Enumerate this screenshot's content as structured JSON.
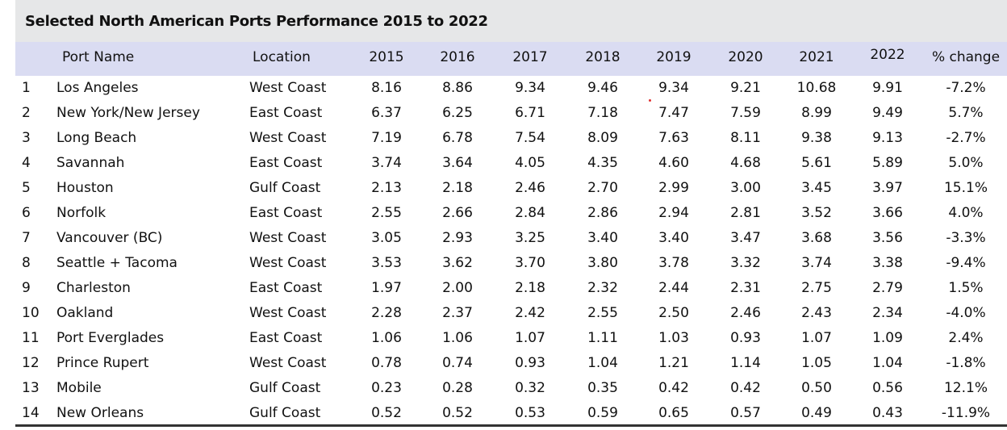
{
  "title": "Selected North American Ports Performance 2015 to 2022",
  "columns": [
    "Port Name",
    "Location",
    "2015",
    "2016",
    "2017",
    "2018",
    "2019",
    "2020",
    "2021",
    "2022",
    "% change"
  ],
  "chart_data": {
    "type": "table",
    "title": "Selected North American Ports Performance 2015 to 2022",
    "columns": [
      "",
      "Port Name",
      "Location",
      "2015",
      "2016",
      "2017",
      "2018",
      "2019",
      "2020",
      "2021",
      "2022",
      "% change"
    ],
    "rows": [
      [
        "1",
        "Los Angeles",
        "West Coast",
        "8.16",
        "8.86",
        "9.34",
        "9.46",
        "9.34",
        "9.21",
        "10.68",
        "9.91",
        "-7.2%"
      ],
      [
        "2",
        "New York/New Jersey",
        "East Coast",
        "6.37",
        "6.25",
        "6.71",
        "7.18",
        "7.47",
        "7.59",
        "8.99",
        "9.49",
        "5.7%"
      ],
      [
        "3",
        "Long Beach",
        "West Coast",
        "7.19",
        "6.78",
        "7.54",
        "8.09",
        "7.63",
        "8.11",
        "9.38",
        "9.13",
        "-2.7%"
      ],
      [
        "4",
        "Savannah",
        "East Coast",
        "3.74",
        "3.64",
        "4.05",
        "4.35",
        "4.60",
        "4.68",
        "5.61",
        "5.89",
        "5.0%"
      ],
      [
        "5",
        "Houston",
        "Gulf Coast",
        "2.13",
        "2.18",
        "2.46",
        "2.70",
        "2.99",
        "3.00",
        "3.45",
        "3.97",
        "15.1%"
      ],
      [
        "6",
        "Norfolk",
        "East Coast",
        "2.55",
        "2.66",
        "2.84",
        "2.86",
        "2.94",
        "2.81",
        "3.52",
        "3.66",
        "4.0%"
      ],
      [
        "7",
        "Vancouver (BC)",
        "West Coast",
        "3.05",
        "2.93",
        "3.25",
        "3.40",
        "3.40",
        "3.47",
        "3.68",
        "3.56",
        "-3.3%"
      ],
      [
        "8",
        "Seattle + Tacoma",
        "West Coast",
        "3.53",
        "3.62",
        "3.70",
        "3.80",
        "3.78",
        "3.32",
        "3.74",
        "3.38",
        "-9.4%"
      ],
      [
        "9",
        "Charleston",
        "East Coast",
        "1.97",
        "2.00",
        "2.18",
        "2.32",
        "2.44",
        "2.31",
        "2.75",
        "2.79",
        "1.5%"
      ],
      [
        "10",
        "Oakland",
        "West Coast",
        "2.28",
        "2.37",
        "2.42",
        "2.55",
        "2.50",
        "2.46",
        "2.43",
        "2.34",
        "-4.0%"
      ],
      [
        "11",
        "Port Everglades",
        "East Coast",
        "1.06",
        "1.06",
        "1.07",
        "1.11",
        "1.03",
        "0.93",
        "1.07",
        "1.09",
        "2.4%"
      ],
      [
        "12",
        "Prince Rupert",
        "West Coast",
        "0.78",
        "0.74",
        "0.93",
        "1.04",
        "1.21",
        "1.14",
        "1.05",
        "1.04",
        "-1.8%"
      ],
      [
        "13",
        "Mobile",
        "Gulf Coast",
        "0.23",
        "0.28",
        "0.32",
        "0.35",
        "0.42",
        "0.42",
        "0.50",
        "0.56",
        "12.1%"
      ],
      [
        "14",
        "New Orleans",
        "Gulf Coast",
        "0.52",
        "0.52",
        "0.53",
        "0.59",
        "0.65",
        "0.57",
        "0.49",
        "0.43",
        "-11.9%"
      ]
    ]
  },
  "colors": {
    "title_background": "#e6e7e8",
    "header_background": "#dadcf2",
    "text": "#111111"
  }
}
